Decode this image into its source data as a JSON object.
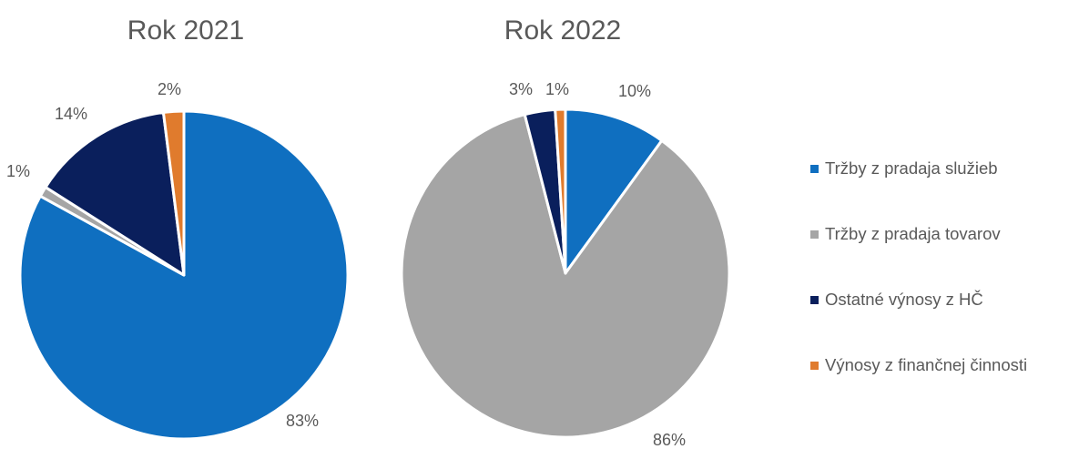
{
  "colors": {
    "services": "#0f6fc0",
    "goods": "#a5a5a5",
    "other": "#0a1f5c",
    "financial": "#e07b2d",
    "label": "#595959"
  },
  "legend": {
    "items": [
      {
        "label": "Tržby z pradaja služieb",
        "color": "#0f6fc0"
      },
      {
        "label": "Tržby z pradaja tovarov",
        "color": "#a5a5a5"
      },
      {
        "label": "Ostatné výnosy z HČ",
        "color": "#0a1f5c"
      },
      {
        "label": "Výnosy z finančnej činnosti",
        "color": "#e07b2d"
      }
    ]
  },
  "chart_data": [
    {
      "type": "pie",
      "title": "Rok 2021",
      "categories": [
        "Tržby z pradaja služieb",
        "Tržby z pradaja tovarov",
        "Ostatné výnosy z HČ",
        "Výnosy z finančnej činnosti"
      ],
      "values": [
        83,
        1,
        14,
        2
      ],
      "labels": [
        "83%",
        "1%",
        "14%",
        "2%"
      ],
      "colors": [
        "#0f6fc0",
        "#a5a5a5",
        "#0a1f5c",
        "#e07b2d"
      ],
      "legend": "right"
    },
    {
      "type": "pie",
      "title": "Rok 2022",
      "categories": [
        "Tržby z pradaja služieb",
        "Tržby z pradaja tovarov",
        "Ostatné výnosy z HČ",
        "Výnosy z finančnej činnosti"
      ],
      "values": [
        10,
        86,
        3,
        1
      ],
      "labels": [
        "10%",
        "86%",
        "3%",
        "1%"
      ],
      "colors": [
        "#0f6fc0",
        "#a5a5a5",
        "#0a1f5c",
        "#e07b2d"
      ],
      "legend": "right"
    }
  ]
}
